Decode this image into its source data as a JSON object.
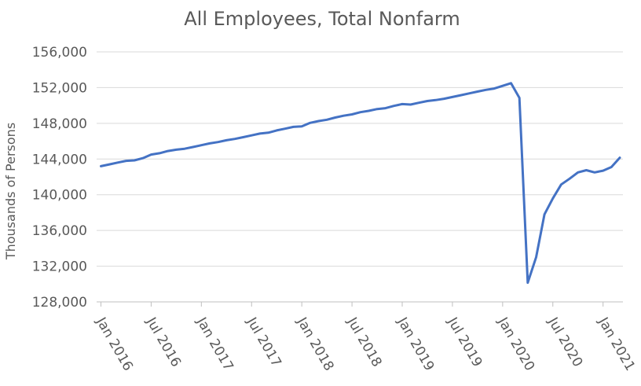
{
  "chart_data": {
    "type": "line",
    "title": "All Employees, Total Nonfarm",
    "ylabel": "Thousands of Persons",
    "xlabel": "",
    "ylim": [
      128000,
      156000
    ],
    "yticks": [
      "156,000",
      "152,000",
      "148,000",
      "144,000",
      "140,000",
      "136,000",
      "132,000",
      "128,000"
    ],
    "ytick_values": [
      156000,
      152000,
      148000,
      144000,
      140000,
      136000,
      132000,
      128000
    ],
    "xticks": [
      "Jan 2016",
      "Jul 2016",
      "Jan 2017",
      "Jul 2017",
      "Jan 2018",
      "Jul 2018",
      "Jan 2019",
      "Jul 2019",
      "Jan 2020",
      "Jul 2020",
      "Jan 2021"
    ],
    "xtick_months": [
      0,
      6,
      12,
      18,
      24,
      30,
      36,
      42,
      48,
      54,
      60
    ],
    "grid": true,
    "series": [
      {
        "color": "#4472c4",
        "start": "Jan 2016",
        "frequency": "monthly",
        "values": [
          143200,
          143400,
          143600,
          143800,
          143850,
          144100,
          144500,
          144650,
          144900,
          145050,
          145150,
          145350,
          145550,
          145750,
          145900,
          146100,
          146250,
          146450,
          146650,
          146850,
          146950,
          147200,
          147400,
          147600,
          147650,
          148050,
          148250,
          148400,
          148650,
          148850,
          149000,
          149250,
          149400,
          149600,
          149700,
          149950,
          150150,
          150100,
          150300,
          150500,
          150600,
          150750,
          150950,
          151150,
          151350,
          151550,
          151750,
          151900,
          152200,
          152500,
          150850,
          130150,
          133000,
          137800,
          139600,
          141150,
          141800,
          142500,
          142750,
          142500,
          142700,
          143100,
          144150
        ]
      }
    ]
  }
}
